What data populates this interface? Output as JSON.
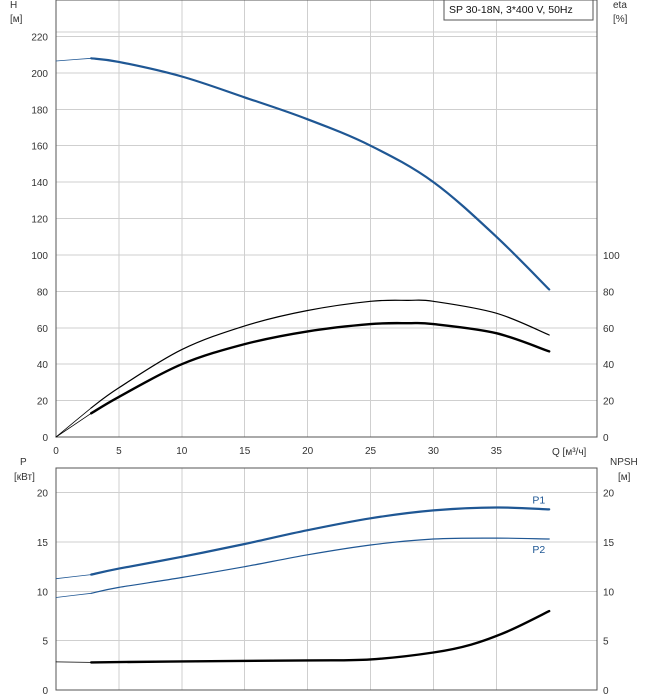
{
  "title": "SP 30-18N, 3*400 V, 50Hz",
  "colors": {
    "blue": "#1f5794",
    "black": "#000000",
    "grid": "#cfcfcf"
  },
  "chart_data": [
    {
      "type": "line",
      "name": "upper",
      "title": "SP 30-18N, 3*400 V, 50Hz",
      "xlabel": "Q [м³/ч]",
      "ylabel_left": "H\n[м]",
      "ylabel_right": "eta\n[%]",
      "xlim": [
        0,
        43
      ],
      "ylim": [
        0,
        240
      ],
      "x_ticks": [
        0,
        5,
        10,
        15,
        20,
        25,
        30,
        35
      ],
      "y_ticks_left": [
        0,
        20,
        40,
        60,
        80,
        100,
        120,
        140,
        160,
        180,
        200,
        220
      ],
      "y_ticks_right": [
        0,
        20,
        40,
        60,
        80,
        100
      ],
      "grid": true,
      "series": [
        {
          "key": "H",
          "color": "#1f5794",
          "width": 2.2,
          "extend_left": true,
          "x": [
            2.8,
            5,
            10,
            15,
            20,
            25,
            30,
            35,
            39.2
          ],
          "y": [
            208,
            206,
            198,
            186.5,
            174.5,
            160,
            140,
            110,
            81
          ]
        },
        {
          "key": "eta_thin",
          "color": "#000000",
          "width": 1.2,
          "extend_left": true,
          "x": [
            2.8,
            5,
            10,
            15,
            20,
            25,
            28,
            30,
            35,
            39.2
          ],
          "y": [
            16,
            27,
            48,
            61,
            69.5,
            74.5,
            75,
            74.5,
            68,
            56
          ]
        },
        {
          "key": "eta_thick",
          "color": "#000000",
          "width": 2.4,
          "extend_left": true,
          "x": [
            2.8,
            5,
            10,
            15,
            20,
            25,
            28,
            30,
            35,
            39.2
          ],
          "y": [
            13,
            22,
            40,
            51,
            58,
            62,
            62.5,
            62,
            57,
            47
          ]
        }
      ]
    },
    {
      "type": "line",
      "name": "lower",
      "ylabel_left": "P\n[кВт]",
      "ylabel_right": "NPSH\n[м]",
      "xlim": [
        0,
        43
      ],
      "ylim": [
        0,
        22.5
      ],
      "y_ticks_left": [
        0,
        5,
        10,
        15,
        20
      ],
      "y_ticks_right": [
        0,
        5,
        10,
        15,
        20
      ],
      "grid": true,
      "series": [
        {
          "key": "P1",
          "name": "P1",
          "color": "#1f5794",
          "width": 2.2,
          "extend_left": true,
          "x": [
            2.8,
            5,
            10,
            15,
            20,
            25,
            30,
            35,
            39.2
          ],
          "y": [
            11.7,
            12.3,
            13.5,
            14.8,
            16.2,
            17.4,
            18.2,
            18.5,
            18.3
          ]
        },
        {
          "key": "P2",
          "name": "P2",
          "color": "#1f5794",
          "width": 1.2,
          "extend_left": true,
          "x": [
            2.8,
            5,
            10,
            15,
            20,
            25,
            30,
            35,
            39.2
          ],
          "y": [
            9.8,
            10.4,
            11.4,
            12.5,
            13.7,
            14.7,
            15.3,
            15.4,
            15.3
          ]
        },
        {
          "key": "NPSH",
          "color": "#000000",
          "width": 2.4,
          "extend_left": true,
          "x": [
            2.8,
            10,
            20,
            25,
            30,
            33,
            36,
            39.2
          ],
          "y": [
            2.8,
            2.9,
            3.0,
            3.1,
            3.8,
            4.6,
            6.0,
            8.0
          ]
        }
      ]
    }
  ]
}
